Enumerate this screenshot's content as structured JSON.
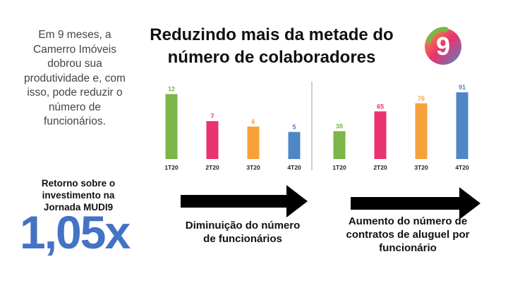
{
  "intro_text": "Em 9 meses, a Camerro Imóveis dobrou sua produtividade e, com isso, pode reduzir o número de funcionários.",
  "headline": "Reduzindo mais da metade do número de colaboradores",
  "logo": {
    "glyph": "9",
    "icon": "brand-9-icon"
  },
  "roi": {
    "label": "Retorno sobre o investimento na Jornada MUDI9",
    "value": "1,05x",
    "color": "#4472c4"
  },
  "captions": {
    "left": "Diminuição do número de funcionários",
    "right": "Aumento do número de contratos de aluguel por funcionário"
  },
  "chart_data": [
    {
      "type": "bar",
      "categories": [
        "1T20",
        "2T20",
        "3T20",
        "4T20"
      ],
      "values": [
        12,
        7,
        6,
        5
      ],
      "colors": [
        "#7ab648",
        "#e8336e",
        "#f7a13a",
        "#4f86c6"
      ],
      "ylim": [
        0,
        13
      ]
    },
    {
      "type": "bar",
      "categories": [
        "1T20",
        "2T20",
        "3T20",
        "4T20"
      ],
      "values": [
        38,
        65,
        76,
        91
      ],
      "colors": [
        "#7ab648",
        "#e8336e",
        "#f7a13a",
        "#4f86c6"
      ],
      "ylim": [
        0,
        96
      ]
    }
  ]
}
